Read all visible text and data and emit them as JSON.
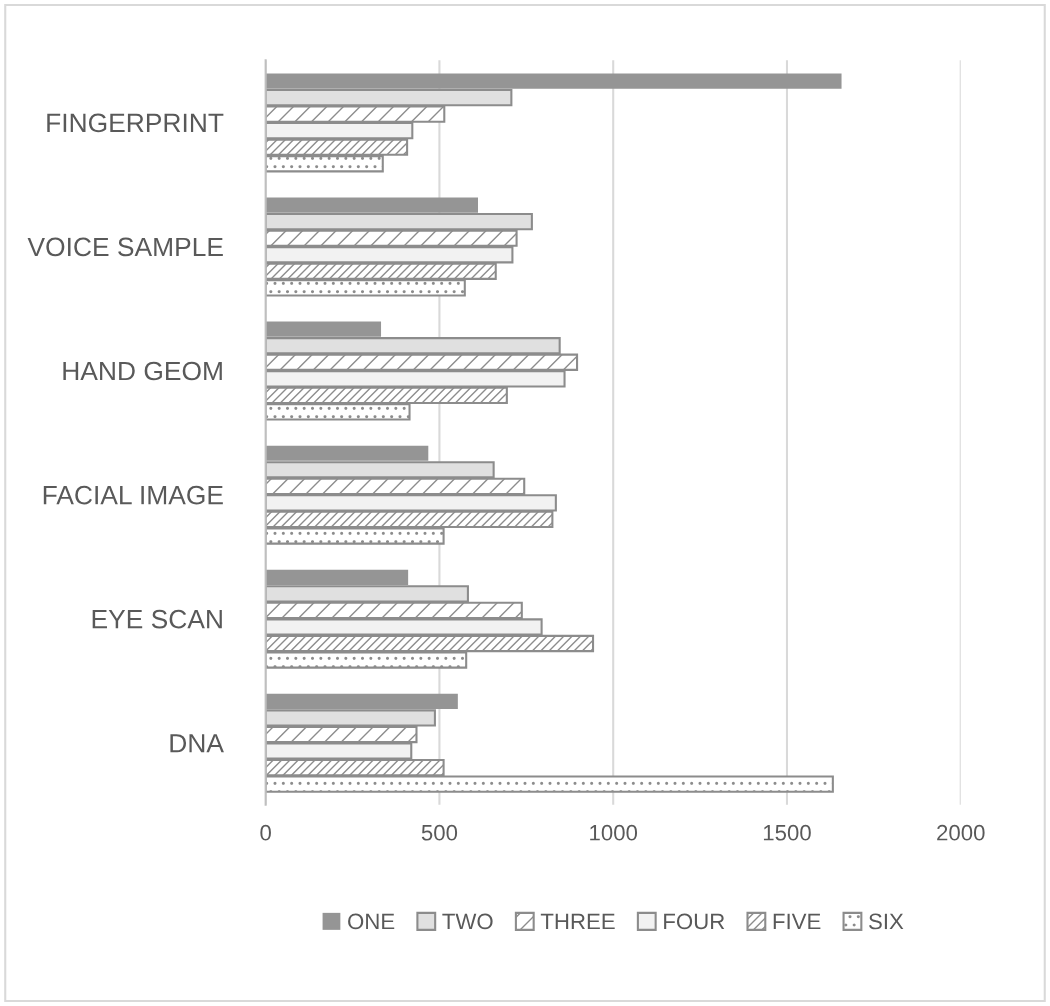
{
  "chart_data": {
    "type": "bar",
    "orientation": "horizontal",
    "categories": [
      "FINGERPRINT",
      "VOICE SAMPLE",
      "HAND GEOM",
      "FACIAL IMAGE",
      "EYE SCAN",
      "DNA"
    ],
    "series": [
      {
        "name": "ONE",
        "color": "#959595",
        "values": [
          1657,
          611,
          332,
          468,
          410,
          553
        ]
      },
      {
        "name": "TWO",
        "color": "#e0e0e0",
        "values": [
          707,
          766,
          846,
          656,
          582,
          487
        ]
      },
      {
        "name": "THREE",
        "color": "#8c8c8c",
        "values": [
          514,
          722,
          896,
          744,
          737,
          434
        ]
      },
      {
        "name": "FOUR",
        "color": "#f2f2f2",
        "values": [
          422,
          710,
          860,
          835,
          794,
          419
        ]
      },
      {
        "name": "FIVE",
        "color": "#8c8c8c",
        "values": [
          407,
          662,
          694,
          825,
          942,
          512
        ]
      },
      {
        "name": "SIX",
        "color": "#8c8c8c",
        "values": [
          337,
          573,
          414,
          512,
          577,
          1632
        ]
      }
    ],
    "xlim": [
      0,
      2000
    ],
    "xticks": [
      0,
      500,
      1000,
      1500,
      2000
    ],
    "grid": "x",
    "legend": "bottom"
  }
}
